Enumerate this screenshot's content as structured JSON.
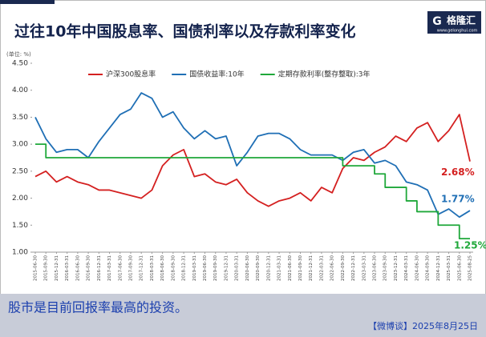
{
  "header": {
    "title": "过往10年中国股息率、国债利率以及存款利率变化",
    "logo": "格隆汇",
    "logo_mark": "G",
    "logo_url": "www.gelonghui.com"
  },
  "chart_data": {
    "type": "line",
    "unit": "(单位: %)",
    "legend": "top",
    "x": [
      "2015-06-30",
      "2015-09-30",
      "2015-12-31",
      "2016-03-31",
      "2016-06-30",
      "2016-09-30",
      "2016-12-31",
      "2017-03-31",
      "2017-06-30",
      "2017-09-30",
      "2017-12-31",
      "2018-03-31",
      "2018-06-30",
      "2018-09-30",
      "2018-12-31",
      "2019-03-31",
      "2019-06-30",
      "2019-09-30",
      "2019-12-31",
      "2020-03-31",
      "2020-06-30",
      "2020-09-30",
      "2020-12-31",
      "2021-03-31",
      "2021-06-30",
      "2021-09-30",
      "2021-12-31",
      "2022-03-31",
      "2022-06-30",
      "2022-09-30",
      "2022-12-31",
      "2023-03-31",
      "2023-06-30",
      "2023-09-30",
      "2023-12-31",
      "2024-03-31",
      "2024-06-30",
      "2024-09-30",
      "2024-12-31",
      "2025-03-31",
      "2025-06-30",
      "2025-08-25"
    ],
    "series": [
      {
        "name": "沪深300股息率",
        "color": "#d42020",
        "end_label": "2.68%",
        "values": [
          2.4,
          2.5,
          2.3,
          2.4,
          2.3,
          2.25,
          2.15,
          2.15,
          2.1,
          2.05,
          2.0,
          2.15,
          2.6,
          2.8,
          2.9,
          2.4,
          2.45,
          2.3,
          2.25,
          2.35,
          2.1,
          1.95,
          1.85,
          1.95,
          2.0,
          2.1,
          1.95,
          2.2,
          2.1,
          2.55,
          2.75,
          2.7,
          2.85,
          2.95,
          3.15,
          3.05,
          3.3,
          3.4,
          3.05,
          3.25,
          3.55,
          2.68
        ]
      },
      {
        "name": "国债收益率:10年",
        "color": "#1f6fb5",
        "end_label": "1.77%",
        "values": [
          3.5,
          3.1,
          2.85,
          2.9,
          2.9,
          2.75,
          3.05,
          3.3,
          3.55,
          3.65,
          3.95,
          3.85,
          3.5,
          3.6,
          3.3,
          3.1,
          3.25,
          3.1,
          3.15,
          2.6,
          2.85,
          3.15,
          3.2,
          3.2,
          3.1,
          2.9,
          2.8,
          2.8,
          2.8,
          2.7,
          2.85,
          2.9,
          2.65,
          2.7,
          2.6,
          2.3,
          2.25,
          2.15,
          1.7,
          1.8,
          1.65,
          1.77
        ]
      },
      {
        "name": "定期存款利率(整存整取):3年",
        "color": "#1fa83a",
        "end_label": "1.25%",
        "step": true,
        "values": [
          3.0,
          2.75,
          2.75,
          2.75,
          2.75,
          2.75,
          2.75,
          2.75,
          2.75,
          2.75,
          2.75,
          2.75,
          2.75,
          2.75,
          2.75,
          2.75,
          2.75,
          2.75,
          2.75,
          2.75,
          2.75,
          2.75,
          2.75,
          2.75,
          2.75,
          2.75,
          2.75,
          2.75,
          2.75,
          2.6,
          2.6,
          2.6,
          2.45,
          2.2,
          2.2,
          1.95,
          1.75,
          1.75,
          1.5,
          1.5,
          1.25,
          1.25
        ]
      }
    ],
    "ylim": [
      1.0,
      4.5
    ],
    "yticks": [
      {
        "value": 1.0,
        "label": "1.00"
      },
      {
        "value": 1.5,
        "label": "1.50"
      },
      {
        "value": 2.0,
        "label": "2.00"
      },
      {
        "value": 2.5,
        "label": "2.50"
      },
      {
        "value": 3.0,
        "label": "3.00"
      },
      {
        "value": 3.5,
        "label": "3.50"
      },
      {
        "value": 4.0,
        "label": "4.00"
      },
      {
        "value": 4.5,
        "label": "4.50"
      }
    ],
    "grid": false
  },
  "footer": {
    "caption": "股市是目前回报率最高的投资。",
    "source": "【微博谈】2025年8月25日"
  }
}
